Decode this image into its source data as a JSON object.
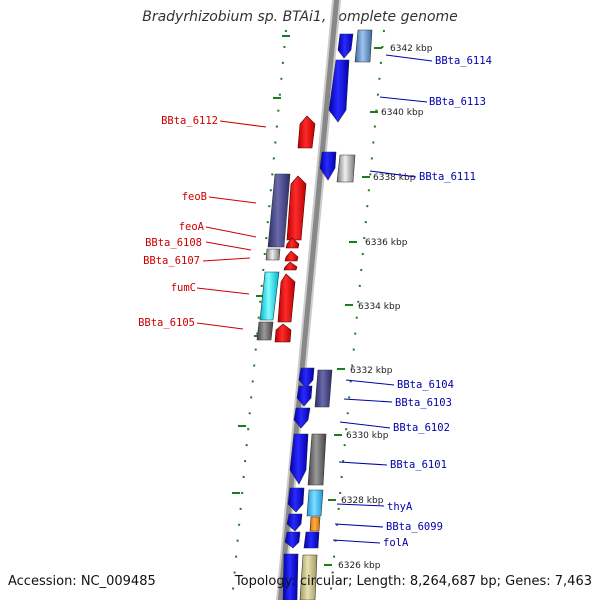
{
  "title": "Bradyrhizobium sp. BTAi1, complete genome",
  "footer": {
    "accession": "Accession: NC_009485",
    "topology": "Topology: circular; Length: 8,264,687 bp; Genes: 7,463"
  },
  "colors": {
    "forward": "#0000ee",
    "reverse": "#ee0000",
    "label_forward": "#0000aa",
    "label_reverse": "#cc0000",
    "tick": "#1a7f1a",
    "backbone": "#888888"
  },
  "scale_labels": [
    "6342 kbp",
    "6340 kbp",
    "6338 kbp",
    "6336 kbp",
    "6334 kbp",
    "6332 kbp",
    "6330 kbp",
    "6328 kbp",
    "6326 kbp"
  ],
  "genes": [
    {
      "label": "BBta_6114",
      "strand": "forward"
    },
    {
      "label": "BBta_6113",
      "strand": "forward"
    },
    {
      "label": "BBta_6112",
      "strand": "reverse"
    },
    {
      "label": "BBta_6111",
      "strand": "forward"
    },
    {
      "label": "feoB",
      "strand": "reverse"
    },
    {
      "label": "feoA",
      "strand": "reverse"
    },
    {
      "label": "BBta_6108",
      "strand": "reverse"
    },
    {
      "label": "BBta_6107",
      "strand": "reverse"
    },
    {
      "label": "fumC",
      "strand": "reverse"
    },
    {
      "label": "BBta_6105",
      "strand": "reverse"
    },
    {
      "label": "BBta_6104",
      "strand": "forward"
    },
    {
      "label": "BBta_6103",
      "strand": "forward"
    },
    {
      "label": "BBta_6102",
      "strand": "forward"
    },
    {
      "label": "BBta_6101",
      "strand": "forward"
    },
    {
      "label": "thyA",
      "strand": "forward"
    },
    {
      "label": "BBta_6099",
      "strand": "forward"
    },
    {
      "label": "folA",
      "strand": "forward"
    }
  ]
}
